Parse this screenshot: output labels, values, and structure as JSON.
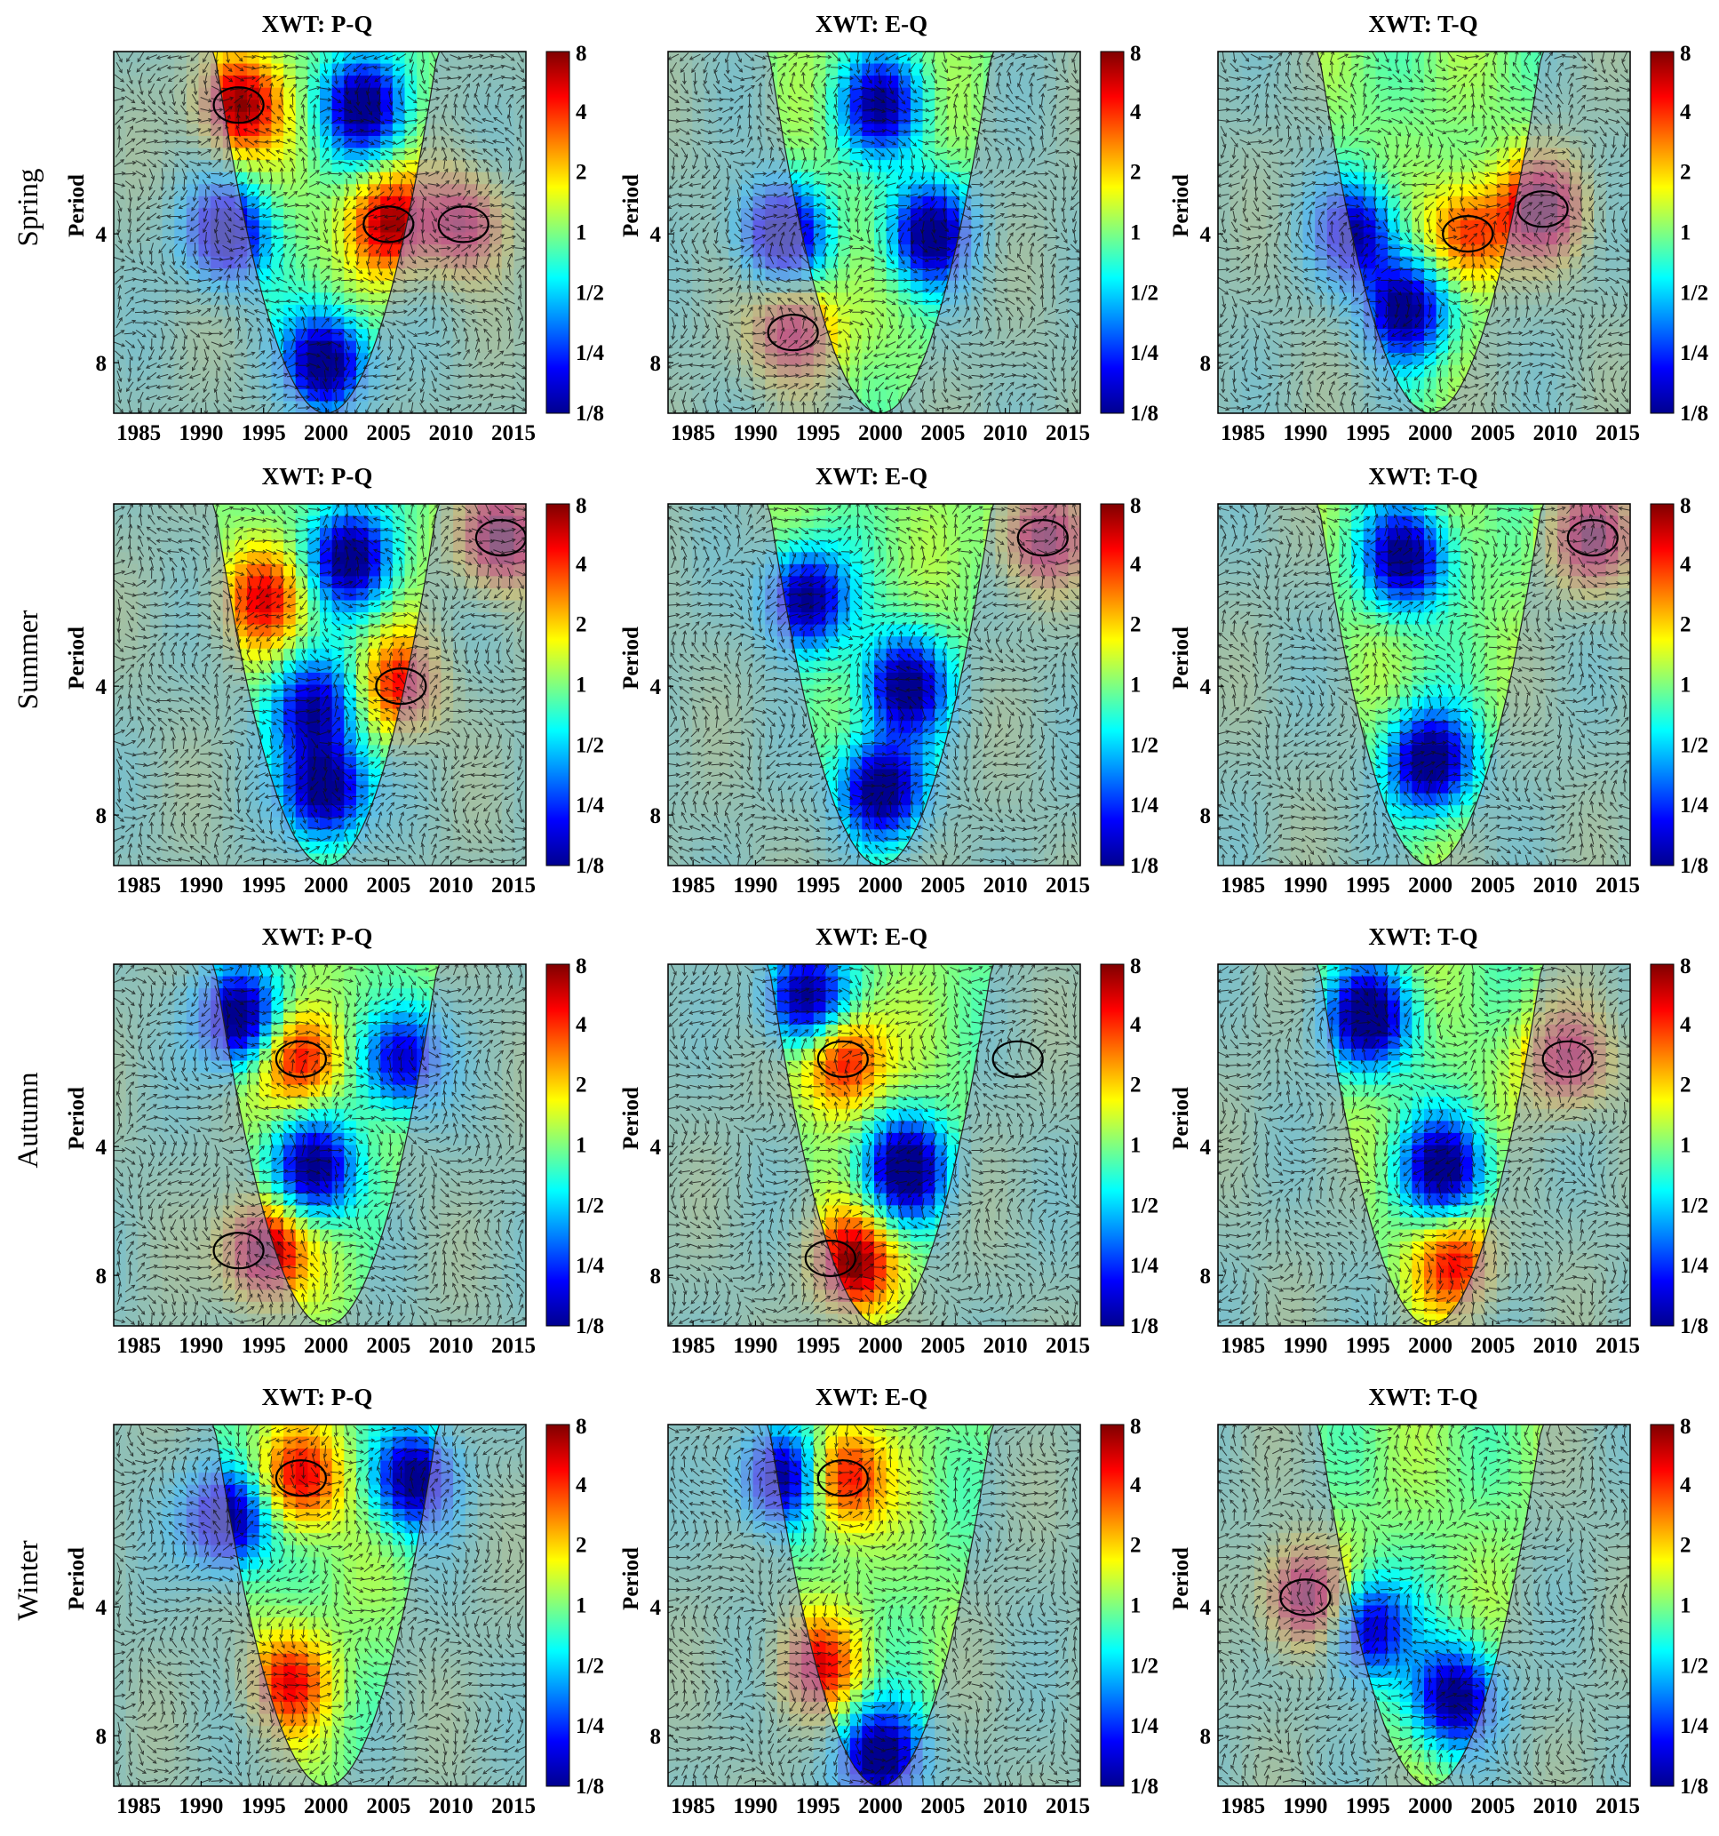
{
  "figure": {
    "row_labels": [
      "Spring",
      "Summer",
      "Autumn",
      "Winter"
    ],
    "column_titles": [
      "XWT: P-Q",
      "XWT: E-Q",
      "XWT: T-Q"
    ],
    "y_axis_label": "Period"
  },
  "colors": {
    "colormap": [
      "#00008f",
      "#0000ff",
      "#0080ff",
      "#00ffff",
      "#80ff80",
      "#ffff00",
      "#ff8000",
      "#ff0000",
      "#800000"
    ],
    "outside_coi_overlay": "#9a9ad8",
    "arrow": "#111111",
    "contour": "#000000"
  },
  "chart_data": [
    {
      "type": "heatmap",
      "title": "XWT: P-Q",
      "season": "Spring",
      "xlabel": "",
      "ylabel": "Period",
      "x_ticks": [
        1985,
        1990,
        1995,
        2000,
        2005,
        2010,
        2015
      ],
      "x_range": [
        1983,
        2016
      ],
      "y_ticks": [
        4,
        8
      ],
      "y_range": [
        1.5,
        10.5
      ],
      "y_scale": "log2",
      "colorbar_ticks": [
        "8",
        "4",
        "2",
        "1",
        "1/2",
        "1/4",
        "1/8"
      ],
      "colorbar_range": [
        0.125,
        8
      ],
      "cone_of_influence": "parabola",
      "coi_min_x": 2000,
      "hot_spots": [
        {
          "x": 1993,
          "period": 2,
          "power": 3.5
        },
        {
          "x": 2005,
          "period": 3.8,
          "power": 3
        },
        {
          "x": 2011,
          "period": 3.8,
          "power": 2.5
        }
      ],
      "cold_spots": [
        {
          "x": 2000,
          "period": 8,
          "power": 0.125
        },
        {
          "x": 1992,
          "period": 4,
          "power": 0.15
        },
        {
          "x": 2003,
          "period": 2,
          "power": 0.15
        }
      ],
      "significant_regions": [
        {
          "x": 1993,
          "period": 2.0
        },
        {
          "x": 2005,
          "period": 3.8
        },
        {
          "x": 2011,
          "period": 3.8
        }
      ]
    },
    {
      "type": "heatmap",
      "title": "XWT: E-Q",
      "season": "Spring",
      "xlabel": "",
      "ylabel": "Period",
      "x_ticks": [
        1985,
        1990,
        1995,
        2000,
        2005,
        2010,
        2015
      ],
      "x_range": [
        1983,
        2016
      ],
      "y_ticks": [
        4,
        8
      ],
      "y_range": [
        1.5,
        10.5
      ],
      "y_scale": "log2",
      "colorbar_ticks": [
        "8",
        "4",
        "2",
        "1",
        "1/2",
        "1/4",
        "1/8"
      ],
      "colorbar_range": [
        0.125,
        8
      ],
      "cone_of_influence": "parabola",
      "coi_min_x": 2000,
      "hot_spots": [
        {
          "x": 1993,
          "period": 6.8,
          "power": 2.5
        }
      ],
      "cold_spots": [
        {
          "x": 2004,
          "period": 4,
          "power": 0.15
        },
        {
          "x": 1992,
          "period": 4,
          "power": 0.15
        },
        {
          "x": 2000,
          "period": 2,
          "power": 0.2
        }
      ],
      "significant_regions": [
        {
          "x": 1993,
          "period": 6.8
        }
      ]
    },
    {
      "type": "heatmap",
      "title": "XWT: T-Q",
      "season": "Spring",
      "xlabel": "",
      "ylabel": "Period",
      "x_ticks": [
        1985,
        1990,
        1995,
        2000,
        2005,
        2010,
        2015
      ],
      "x_range": [
        1983,
        2016
      ],
      "y_ticks": [
        4,
        8
      ],
      "y_range": [
        1.5,
        10.5
      ],
      "y_scale": "log2",
      "colorbar_ticks": [
        "8",
        "4",
        "2",
        "1",
        "1/2",
        "1/4",
        "1/8"
      ],
      "colorbar_range": [
        0.125,
        8
      ],
      "cone_of_influence": "parabola",
      "coi_min_x": 2000,
      "hot_spots": [
        {
          "x": 2009,
          "period": 3.5,
          "power": 3.5
        },
        {
          "x": 2003,
          "period": 4,
          "power": 2
        }
      ],
      "cold_spots": [
        {
          "x": 1998,
          "period": 6,
          "power": 0.15
        },
        {
          "x": 1994,
          "period": 4,
          "power": 0.2
        }
      ],
      "significant_regions": [
        {
          "x": 2009,
          "period": 3.5
        },
        {
          "x": 2003,
          "period": 4
        }
      ]
    },
    {
      "type": "heatmap",
      "title": "XWT: P-Q",
      "season": "Summer",
      "xlabel": "",
      "ylabel": "Period",
      "x_ticks": [
        1985,
        1990,
        1995,
        2000,
        2005,
        2010,
        2015
      ],
      "x_range": [
        1983,
        2016
      ],
      "y_ticks": [
        4,
        8
      ],
      "y_range": [
        1.5,
        10.5
      ],
      "y_scale": "log2",
      "colorbar_ticks": [
        "8",
        "4",
        "2",
        "1",
        "1/2",
        "1/4",
        "1/8"
      ],
      "colorbar_range": [
        0.125,
        8
      ],
      "cone_of_influence": "parabola",
      "coi_min_x": 2000,
      "hot_spots": [
        {
          "x": 2014,
          "period": 1.8,
          "power": 4
        },
        {
          "x": 2006,
          "period": 4,
          "power": 2
        },
        {
          "x": 1995,
          "period": 2.5,
          "power": 2
        }
      ],
      "cold_spots": [
        {
          "x": 2000,
          "period": 7,
          "power": 0.125
        },
        {
          "x": 2002,
          "period": 2,
          "power": 0.15
        },
        {
          "x": 1999,
          "period": 4.5,
          "power": 0.2
        }
      ],
      "significant_regions": [
        {
          "x": 2014,
          "period": 1.8
        },
        {
          "x": 2006,
          "period": 4.0
        }
      ]
    },
    {
      "type": "heatmap",
      "title": "XWT: E-Q",
      "season": "Summer",
      "xlabel": "",
      "ylabel": "Period",
      "x_ticks": [
        1985,
        1990,
        1995,
        2000,
        2005,
        2010,
        2015
      ],
      "x_range": [
        1983,
        2016
      ],
      "y_ticks": [
        4,
        8
      ],
      "y_range": [
        1.5,
        10.5
      ],
      "y_scale": "log2",
      "colorbar_ticks": [
        "8",
        "4",
        "2",
        "1",
        "1/2",
        "1/4",
        "1/8"
      ],
      "colorbar_range": [
        0.125,
        8
      ],
      "cone_of_influence": "parabola",
      "coi_min_x": 2000,
      "hot_spots": [
        {
          "x": 2013,
          "period": 1.8,
          "power": 3
        }
      ],
      "cold_spots": [
        {
          "x": 2000,
          "period": 7,
          "power": 0.125
        },
        {
          "x": 1994,
          "period": 2.5,
          "power": 0.15
        },
        {
          "x": 2002,
          "period": 4,
          "power": 0.15
        }
      ],
      "significant_regions": [
        {
          "x": 2013,
          "period": 1.8
        }
      ]
    },
    {
      "type": "heatmap",
      "title": "XWT: T-Q",
      "season": "Summer",
      "xlabel": "",
      "ylabel": "Period",
      "x_ticks": [
        1985,
        1990,
        1995,
        2000,
        2005,
        2010,
        2015
      ],
      "x_range": [
        1983,
        2016
      ],
      "y_ticks": [
        4,
        8
      ],
      "y_range": [
        1.5,
        10.5
      ],
      "y_scale": "log2",
      "colorbar_ticks": [
        "8",
        "4",
        "2",
        "1",
        "1/2",
        "1/4",
        "1/8"
      ],
      "colorbar_range": [
        0.125,
        8
      ],
      "cone_of_influence": "parabola",
      "coi_min_x": 2000,
      "hot_spots": [
        {
          "x": 2013,
          "period": 1.8,
          "power": 3
        }
      ],
      "cold_spots": [
        {
          "x": 2000,
          "period": 6,
          "power": 0.125
        },
        {
          "x": 1998,
          "period": 2,
          "power": 0.15
        }
      ],
      "significant_regions": [
        {
          "x": 2013,
          "period": 1.8
        }
      ]
    },
    {
      "type": "heatmap",
      "title": "XWT: P-Q",
      "season": "Autumn",
      "xlabel": "",
      "ylabel": "Period",
      "x_ticks": [
        1985,
        1990,
        1995,
        2000,
        2005,
        2010,
        2015
      ],
      "x_range": [
        1983,
        2016
      ],
      "y_ticks": [
        4,
        8
      ],
      "y_range": [
        1.5,
        10.5
      ],
      "y_scale": "log2",
      "colorbar_ticks": [
        "8",
        "4",
        "2",
        "1",
        "1/2",
        "1/4",
        "1/8"
      ],
      "colorbar_range": [
        0.125,
        8
      ],
      "cone_of_influence": "parabola",
      "coi_min_x": 2000,
      "hot_spots": [
        {
          "x": 1995,
          "period": 7,
          "power": 4
        },
        {
          "x": 1998,
          "period": 2.5,
          "power": 2.5
        }
      ],
      "cold_spots": [
        {
          "x": 1993,
          "period": 2,
          "power": 0.125
        },
        {
          "x": 1999,
          "period": 4.5,
          "power": 0.15
        },
        {
          "x": 2006,
          "period": 2.5,
          "power": 0.2
        }
      ],
      "significant_regions": [
        {
          "x": 1993,
          "period": 7.0
        },
        {
          "x": 1998,
          "period": 2.5
        }
      ]
    },
    {
      "type": "heatmap",
      "title": "XWT: E-Q",
      "season": "Autumn",
      "xlabel": "",
      "ylabel": "Period",
      "x_ticks": [
        1985,
        1990,
        1995,
        2000,
        2005,
        2010,
        2015
      ],
      "x_range": [
        1983,
        2016
      ],
      "y_ticks": [
        4,
        8
      ],
      "y_range": [
        1.5,
        10.5
      ],
      "y_scale": "log2",
      "colorbar_ticks": [
        "8",
        "4",
        "2",
        "1",
        "1/2",
        "1/4",
        "1/8"
      ],
      "colorbar_range": [
        0.125,
        8
      ],
      "cone_of_influence": "parabola",
      "coi_min_x": 2000,
      "hot_spots": [
        {
          "x": 1998,
          "period": 7.5,
          "power": 3.5
        },
        {
          "x": 1997,
          "period": 2.5,
          "power": 2.5
        }
      ],
      "cold_spots": [
        {
          "x": 2002,
          "period": 4.5,
          "power": 0.125
        },
        {
          "x": 1994,
          "period": 1.8,
          "power": 0.15
        }
      ],
      "significant_regions": [
        {
          "x": 1996,
          "period": 7.3
        },
        {
          "x": 1997,
          "period": 2.5
        },
        {
          "x": 2011,
          "period": 2.5
        }
      ]
    },
    {
      "type": "heatmap",
      "title": "XWT: T-Q",
      "season": "Autumn",
      "xlabel": "",
      "ylabel": "Period",
      "x_ticks": [
        1985,
        1990,
        1995,
        2000,
        2005,
        2010,
        2015
      ],
      "x_range": [
        1983,
        2016
      ],
      "y_ticks": [
        4,
        8
      ],
      "y_range": [
        1.5,
        10.5
      ],
      "y_scale": "log2",
      "colorbar_ticks": [
        "8",
        "4",
        "2",
        "1",
        "1/2",
        "1/4",
        "1/8"
      ],
      "colorbar_range": [
        0.125,
        8
      ],
      "cone_of_influence": "parabola",
      "coi_min_x": 2000,
      "hot_spots": [
        {
          "x": 2011,
          "period": 2.5,
          "power": 2.5
        },
        {
          "x": 2002,
          "period": 7.5,
          "power": 2
        }
      ],
      "cold_spots": [
        {
          "x": 1995,
          "period": 2,
          "power": 0.125
        },
        {
          "x": 2001,
          "period": 4.5,
          "power": 0.15
        }
      ],
      "significant_regions": [
        {
          "x": 2011,
          "period": 2.5
        }
      ]
    },
    {
      "type": "heatmap",
      "title": "XWT: P-Q",
      "season": "Winter",
      "xlabel": "",
      "ylabel": "Period",
      "x_ticks": [
        1985,
        1990,
        1995,
        2000,
        2005,
        2010,
        2015
      ],
      "x_range": [
        1983,
        2016
      ],
      "y_ticks": [
        4,
        8
      ],
      "y_range": [
        1.5,
        10.5
      ],
      "y_scale": "log2",
      "colorbar_ticks": [
        "8",
        "4",
        "2",
        "1",
        "1/2",
        "1/4",
        "1/8"
      ],
      "colorbar_range": [
        0.125,
        8
      ],
      "cone_of_influence": "parabola",
      "coi_min_x": 2000,
      "hot_spots": [
        {
          "x": 1998,
          "period": 2,
          "power": 2.5
        },
        {
          "x": 1997,
          "period": 6,
          "power": 2
        }
      ],
      "cold_spots": [
        {
          "x": 1992,
          "period": 2.5,
          "power": 0.125
        },
        {
          "x": 2007,
          "period": 2,
          "power": 0.15
        }
      ],
      "significant_regions": [
        {
          "x": 1998,
          "period": 2.0
        }
      ]
    },
    {
      "type": "heatmap",
      "title": "XWT: E-Q",
      "season": "Winter",
      "xlabel": "",
      "ylabel": "Period",
      "x_ticks": [
        1985,
        1990,
        1995,
        2000,
        2005,
        2010,
        2015
      ],
      "x_range": [
        1983,
        2016
      ],
      "y_ticks": [
        4,
        8
      ],
      "y_range": [
        1.5,
        10.5
      ],
      "y_scale": "log2",
      "colorbar_ticks": [
        "8",
        "4",
        "2",
        "1",
        "1/2",
        "1/4",
        "1/8"
      ],
      "colorbar_range": [
        0.125,
        8
      ],
      "cone_of_influence": "parabola",
      "coi_min_x": 2000,
      "hot_spots": [
        {
          "x": 1997,
          "period": 2,
          "power": 2.5
        },
        {
          "x": 1995,
          "period": 5.5,
          "power": 2
        }
      ],
      "cold_spots": [
        {
          "x": 2000,
          "period": 9,
          "power": 0.125
        },
        {
          "x": 1992,
          "period": 2,
          "power": 0.15
        }
      ],
      "significant_regions": [
        {
          "x": 1997,
          "period": 2.0
        }
      ]
    },
    {
      "type": "heatmap",
      "title": "XWT: T-Q",
      "season": "Winter",
      "xlabel": "",
      "ylabel": "Period",
      "x_ticks": [
        1985,
        1990,
        1995,
        2000,
        2005,
        2010,
        2015
      ],
      "x_range": [
        1983,
        2016
      ],
      "y_ticks": [
        4,
        8
      ],
      "y_range": [
        1.5,
        10.5
      ],
      "y_scale": "log2",
      "colorbar_ticks": [
        "8",
        "4",
        "2",
        "1",
        "1/2",
        "1/4",
        "1/8"
      ],
      "colorbar_range": [
        0.125,
        8
      ],
      "cone_of_influence": "parabola",
      "coi_min_x": 2000,
      "hot_spots": [
        {
          "x": 1990,
          "period": 3.8,
          "power": 3.5
        }
      ],
      "cold_spots": [
        {
          "x": 2002,
          "period": 6.5,
          "power": 0.15
        },
        {
          "x": 1995,
          "period": 4.5,
          "power": 0.2
        }
      ],
      "significant_regions": [
        {
          "x": 1990,
          "period": 3.8
        }
      ]
    }
  ]
}
